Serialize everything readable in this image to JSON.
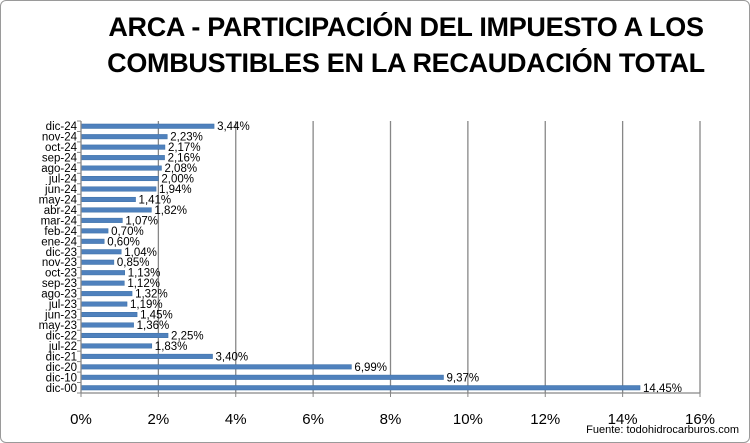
{
  "title_line1": "ARCA - PARTICIPACIÓN DEL IMPUESTO A LOS",
  "title_line2": "COMBUSTIBLES EN LA RECAUDACIÓN TOTAL",
  "source": "Fuente: todohidrocarburos.com",
  "chart_data": {
    "type": "bar",
    "orientation": "horizontal",
    "title": "ARCA - PARTICIPACIÓN DEL IMPUESTO A LOS COMBUSTIBLES EN LA RECAUDACIÓN TOTAL",
    "categories": [
      "dic-00",
      "dic-10",
      "dic-20",
      "dic-21",
      "jul-22",
      "dic-22",
      "may-23",
      "jun-23",
      "jul-23",
      "ago-23",
      "sep-23",
      "oct-23",
      "nov-23",
      "dic-23",
      "ene-24",
      "feb-24",
      "mar-24",
      "abr-24",
      "may-24",
      "jun-24",
      "jul-24",
      "ago-24",
      "sep-24",
      "oct-24",
      "nov-24",
      "dic-24"
    ],
    "values": [
      14.45,
      9.37,
      6.99,
      3.4,
      1.83,
      2.25,
      1.36,
      1.45,
      1.19,
      1.32,
      1.12,
      1.13,
      0.85,
      1.04,
      0.6,
      0.7,
      1.07,
      1.82,
      1.41,
      1.94,
      2.0,
      2.08,
      2.16,
      2.17,
      2.23,
      3.44
    ],
    "data_labels": [
      "14,45%",
      "9,37%",
      "6,99%",
      "3,40%",
      "1,83%",
      "2,25%",
      "1,36%",
      "1,45%",
      "1,19%",
      "1,32%",
      "1,12%",
      "1,13%",
      "0,85%",
      "1,04%",
      "0,60%",
      "0,70%",
      "1,07%",
      "1,82%",
      "1,41%",
      "1,94%",
      "2,00%",
      "2,08%",
      "2,16%",
      "2,17%",
      "2,23%",
      "3,44%"
    ],
    "x_ticks": [
      0,
      2,
      4,
      6,
      8,
      10,
      12,
      14,
      16
    ],
    "x_tick_labels": [
      "0%",
      "2%",
      "4%",
      "6%",
      "8%",
      "10%",
      "12%",
      "14%",
      "16%"
    ],
    "xlim": [
      0,
      16
    ],
    "xlabel": "",
    "ylabel": "",
    "grid": "vertical",
    "legend": "none",
    "bar_color": "#4f81bd"
  }
}
